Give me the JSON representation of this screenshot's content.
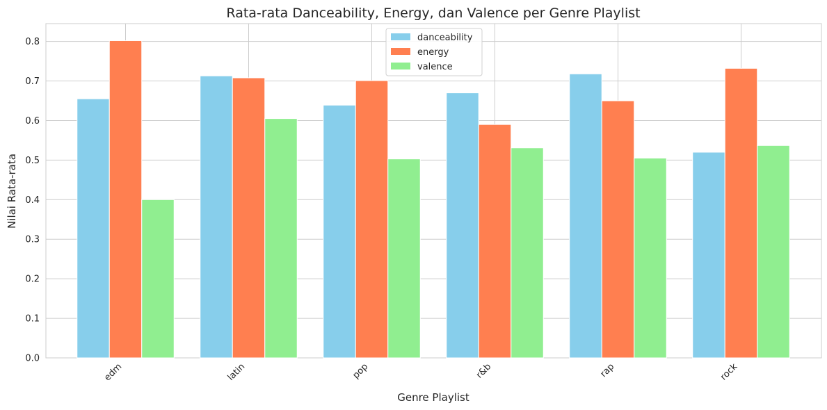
{
  "chart_data": {
    "type": "bar",
    "title": "Rata-rata Danceability, Energy, dan Valence per Genre Playlist",
    "xlabel": "Genre Playlist",
    "ylabel": "Nilai Rata-rata",
    "categories": [
      "edm",
      "latin",
      "pop",
      "r&b",
      "rap",
      "rock"
    ],
    "series": [
      {
        "name": "danceability",
        "color": "#87ceeb",
        "values": [
          0.655,
          0.713,
          0.639,
          0.67,
          0.718,
          0.52
        ]
      },
      {
        "name": "energy",
        "color": "#ff7f50",
        "values": [
          0.802,
          0.708,
          0.701,
          0.59,
          0.65,
          0.732
        ]
      },
      {
        "name": "valence",
        "color": "#90ee90",
        "values": [
          0.4,
          0.605,
          0.503,
          0.531,
          0.505,
          0.537
        ]
      }
    ],
    "ylim": [
      0,
      0.845
    ],
    "yticks": [
      "0.0",
      "0.1",
      "0.2",
      "0.3",
      "0.4",
      "0.5",
      "0.6",
      "0.7",
      "0.8"
    ],
    "grid": true,
    "legend_position": "top-center",
    "tick_rotation": 45
  }
}
